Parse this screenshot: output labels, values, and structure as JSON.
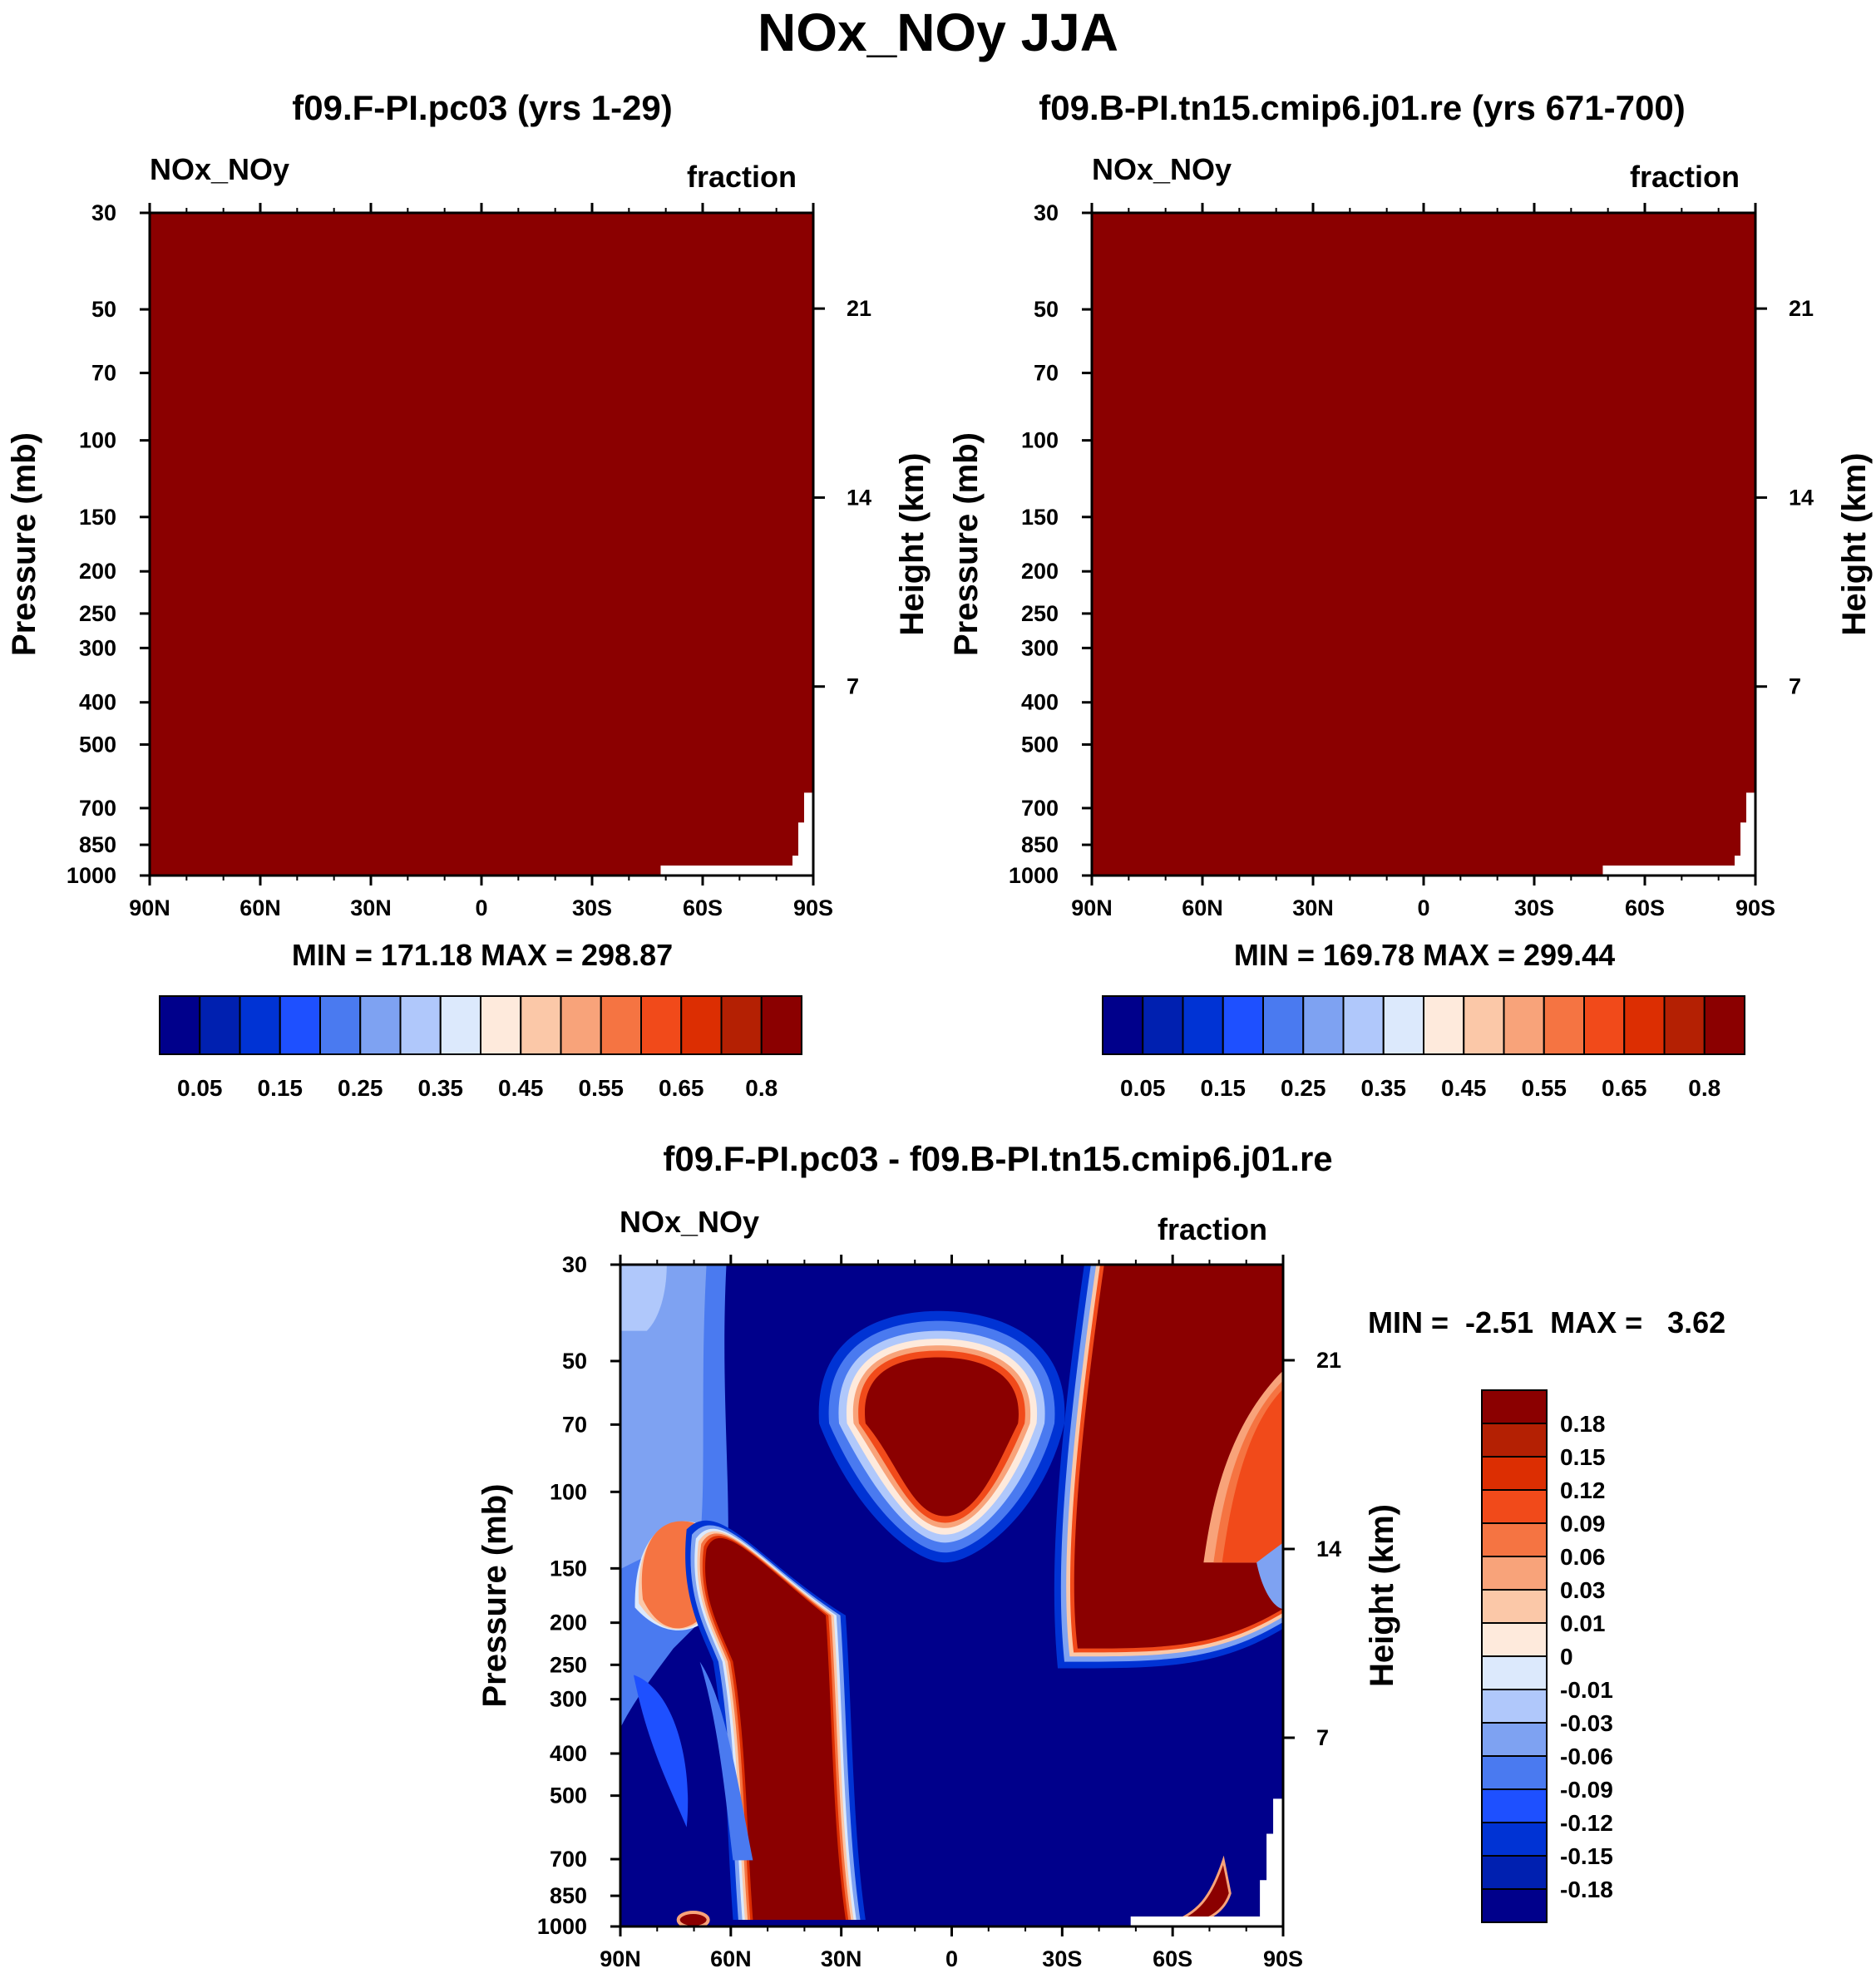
{
  "figure": {
    "title": "NOx_NOy JJA"
  },
  "chart_data": [
    {
      "type": "heatmap",
      "title": "f09.F-PI.pc03 (yrs 1-29)",
      "left_string": "NOx_NOy",
      "right_string": "fraction",
      "xlabel": "",
      "ylabel": "Pressure (mb)",
      "y2label": "Height (km)",
      "x_ticks": [
        "90N",
        "60N",
        "30N",
        "0",
        "30S",
        "60S",
        "90S"
      ],
      "y_ticks": [
        30,
        50,
        70,
        100,
        150,
        200,
        250,
        300,
        400,
        500,
        700,
        850,
        1000
      ],
      "y2_ticks": [
        21,
        14,
        7
      ],
      "ylim": [
        1000,
        30
      ],
      "min_label": "MIN = 171.18  MAX = 298.87",
      "min": 171.18,
      "max": 298.87,
      "fill_color": "#8b0000",
      "colorbar": {
        "levels": [
          0.05,
          0.1,
          0.15,
          0.2,
          0.25,
          0.3,
          0.35,
          0.4,
          0.45,
          0.5,
          0.55,
          0.6,
          0.65,
          0.7,
          0.8
        ],
        "labels": [
          "0.05",
          "0.15",
          "0.25",
          "0.35",
          "0.45",
          "0.55",
          "0.65",
          "0.8"
        ],
        "colors": [
          "#00008b",
          "#0020b0",
          "#0033d4",
          "#1e50ff",
          "#4a7af0",
          "#7ea2f2",
          "#b0c8fb",
          "#dce9fc",
          "#feeadc",
          "#fbc8a8",
          "#f8a37a",
          "#f57442",
          "#f14a1a",
          "#dc2e02",
          "#b42003",
          "#8b0000"
        ]
      }
    },
    {
      "type": "heatmap",
      "title": "f09.B-PI.tn15.cmip6.j01.re (yrs 671-700)",
      "left_string": "NOx_NOy",
      "right_string": "fraction",
      "xlabel": "",
      "ylabel": "Pressure (mb)",
      "y2label": "Height (km)",
      "x_ticks": [
        "90N",
        "60N",
        "30N",
        "0",
        "30S",
        "60S",
        "90S"
      ],
      "y_ticks": [
        30,
        50,
        70,
        100,
        150,
        200,
        250,
        300,
        400,
        500,
        700,
        850,
        1000
      ],
      "y2_ticks": [
        21,
        14,
        7
      ],
      "ylim": [
        1000,
        30
      ],
      "min_label": "MIN = 169.78  MAX = 299.44",
      "min": 169.78,
      "max": 299.44,
      "fill_color": "#8b0000",
      "colorbar": {
        "levels": [
          0.05,
          0.1,
          0.15,
          0.2,
          0.25,
          0.3,
          0.35,
          0.4,
          0.45,
          0.5,
          0.55,
          0.6,
          0.65,
          0.7,
          0.8
        ],
        "labels": [
          "0.05",
          "0.15",
          "0.25",
          "0.35",
          "0.45",
          "0.55",
          "0.65",
          "0.8"
        ],
        "colors": [
          "#00008b",
          "#0020b0",
          "#0033d4",
          "#1e50ff",
          "#4a7af0",
          "#7ea2f2",
          "#b0c8fb",
          "#dce9fc",
          "#feeadc",
          "#fbc8a8",
          "#f8a37a",
          "#f57442",
          "#f14a1a",
          "#dc2e02",
          "#b42003",
          "#8b0000"
        ]
      }
    },
    {
      "type": "heatmap",
      "title": "f09.F-PI.pc03 - f09.B-PI.tn15.cmip6.j01.re",
      "left_string": "NOx_NOy",
      "right_string": "fraction",
      "xlabel": "",
      "ylabel": "Pressure (mb)",
      "y2label": "Height (km)",
      "x_ticks": [
        "90N",
        "60N",
        "30N",
        "0",
        "30S",
        "60S",
        "90S"
      ],
      "y_ticks": [
        30,
        50,
        70,
        100,
        150,
        200,
        250,
        300,
        400,
        500,
        700,
        850,
        1000
      ],
      "y2_ticks": [
        21,
        14,
        7
      ],
      "ylim": [
        1000,
        30
      ],
      "min_label": "MIN =  -2.51  MAX =   3.62",
      "min": -2.51,
      "max": 3.62,
      "colorbar": {
        "orientation": "vertical",
        "labels": [
          "0.18",
          "0.15",
          "0.12",
          "0.09",
          "0.06",
          "0.03",
          "0.01",
          "0",
          "-0.01",
          "-0.03",
          "-0.06",
          "-0.09",
          "-0.12",
          "-0.15",
          "-0.18"
        ],
        "colors": [
          "#8b0000",
          "#b42003",
          "#dc2e02",
          "#f14a1a",
          "#f57442",
          "#f8a37a",
          "#fbc8a8",
          "#feeadc",
          "#dce9fc",
          "#b0c8fb",
          "#7ea2f2",
          "#4a7af0",
          "#1e50ff",
          "#0033d4",
          "#0020b0",
          "#00008b"
        ]
      },
      "regions": [
        {
          "name": "high-lat-lower-positive",
          "value": 0.05
        },
        {
          "name": "midlat-column-positive",
          "value": 0.2
        },
        {
          "name": "stratospheric-tropical-blob",
          "value": 0.2
        },
        {
          "name": "southern-hemisphere-positive",
          "value": 0.2
        },
        {
          "name": "arctic-upper-negative",
          "value": -0.03
        },
        {
          "name": "background",
          "value": -0.2
        }
      ]
    }
  ]
}
